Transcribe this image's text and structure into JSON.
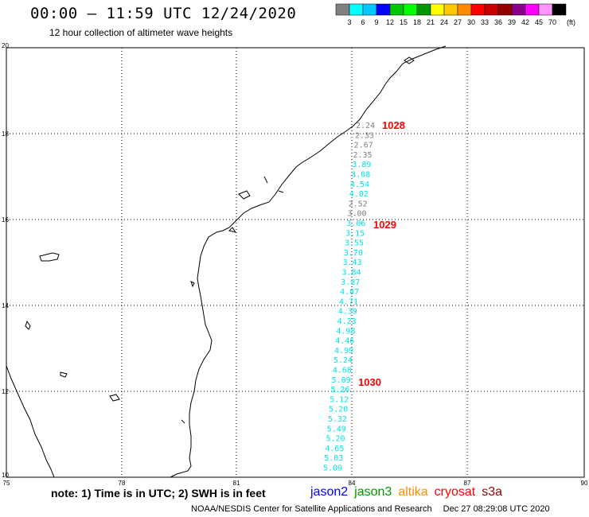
{
  "header": {
    "title": "00:00 – 11:59 UTC 12/24/2020",
    "subtitle": "12 hour collection of altimeter wave heights"
  },
  "legend": {
    "colors": [
      "#808080",
      "#00ffff",
      "#00c8ff",
      "#0000ff",
      "#00c800",
      "#00ff00",
      "#009600",
      "#ffff00",
      "#ffc800",
      "#ff8c00",
      "#ff0000",
      "#c80000",
      "#960000",
      "#8b008b",
      "#ff00ff",
      "#ff96ff",
      "#000000"
    ],
    "labels": [
      "3",
      "6",
      "9",
      "12",
      "15",
      "18",
      "21",
      "24",
      "27",
      "30",
      "33",
      "36",
      "39",
      "42",
      "45",
      "70"
    ],
    "unit": "(ft)"
  },
  "axes": {
    "x_ticks": [
      "75",
      "78",
      "81",
      "84",
      "87",
      "90"
    ],
    "y_ticks": [
      "20",
      "18",
      "16",
      "14",
      "12",
      "10"
    ]
  },
  "track": {
    "colors": {
      "low": "#808080",
      "mid": "#00e5e5"
    },
    "readings": [
      {
        "v": "2.24",
        "c": "low"
      },
      {
        "v": "2.33",
        "c": "low"
      },
      {
        "v": "2.67",
        "c": "low"
      },
      {
        "v": "2.35",
        "c": "low"
      },
      {
        "v": "3.89",
        "c": "mid"
      },
      {
        "v": "3.08",
        "c": "mid"
      },
      {
        "v": "4.54",
        "c": "mid"
      },
      {
        "v": "4.02",
        "c": "mid"
      },
      {
        "v": "2.52",
        "c": "low"
      },
      {
        "v": "3.00",
        "c": "low"
      },
      {
        "v": "3.06",
        "c": "mid"
      },
      {
        "v": "3.15",
        "c": "mid"
      },
      {
        "v": "3.55",
        "c": "mid"
      },
      {
        "v": "3.70",
        "c": "mid"
      },
      {
        "v": "3.43",
        "c": "mid"
      },
      {
        "v": "3.84",
        "c": "mid"
      },
      {
        "v": "3.87",
        "c": "mid"
      },
      {
        "v": "4.07",
        "c": "mid"
      },
      {
        "v": "4.71",
        "c": "mid"
      },
      {
        "v": "4.39",
        "c": "mid"
      },
      {
        "v": "4.23",
        "c": "mid"
      },
      {
        "v": "4.98",
        "c": "mid"
      },
      {
        "v": "4.46",
        "c": "mid"
      },
      {
        "v": "4.99",
        "c": "mid"
      },
      {
        "v": "5.24",
        "c": "mid"
      },
      {
        "v": "4.68",
        "c": "mid"
      },
      {
        "v": "5.09",
        "c": "mid"
      },
      {
        "v": "5.26",
        "c": "mid"
      },
      {
        "v": "5.12",
        "c": "mid"
      },
      {
        "v": "5.20",
        "c": "mid"
      },
      {
        "v": "5.32",
        "c": "mid"
      },
      {
        "v": "5.49",
        "c": "mid"
      },
      {
        "v": "5.20",
        "c": "mid"
      },
      {
        "v": "4.65",
        "c": "mid"
      },
      {
        "v": "5.03",
        "c": "mid"
      },
      {
        "v": "5.09",
        "c": "mid"
      }
    ],
    "time_labels": [
      "1028",
      "1029",
      "1030"
    ],
    "time_color": "#ff0000"
  },
  "footer": {
    "note": "note: 1) Time is in UTC; 2) SWH is in feet",
    "satellites": [
      {
        "name": "jason2",
        "color": "#0000ff"
      },
      {
        "name": "jason3",
        "color": "#009600"
      },
      {
        "name": "altika",
        "color": "#ff8c00"
      },
      {
        "name": "cryosat",
        "color": "#ff0000"
      },
      {
        "name": "s3a",
        "color": "#960000"
      }
    ],
    "credit": "NOAA/NESDIS Center for Satellite Applications and Research",
    "timestamp": "Dec 27 08:29:08 UTC 2020"
  }
}
